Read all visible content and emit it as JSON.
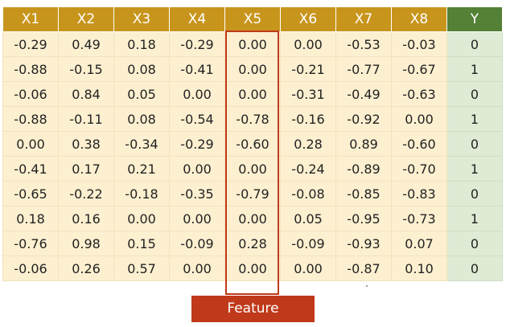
{
  "table": {
    "headers": [
      "X1",
      "X2",
      "X3",
      "X4",
      "X5",
      "X6",
      "X7",
      "X8",
      "Y"
    ],
    "rows": [
      [
        "-0.29",
        "0.49",
        "0.18",
        "-0.29",
        "0.00",
        "0.00",
        "-0.53",
        "-0.03",
        "0"
      ],
      [
        "-0.88",
        "-0.15",
        "0.08",
        "-0.41",
        "0.00",
        "-0.21",
        "-0.77",
        "-0.67",
        "1"
      ],
      [
        "-0.06",
        "0.84",
        "0.05",
        "0.00",
        "0.00",
        "-0.31",
        "-0.49",
        "-0.63",
        "0"
      ],
      [
        "-0.88",
        "-0.11",
        "0.08",
        "-0.54",
        "-0.78",
        "-0.16",
        "-0.92",
        "0.00",
        "1"
      ],
      [
        "0.00",
        "0.38",
        "-0.34",
        "-0.29",
        "-0.60",
        "0.28",
        "0.89",
        "-0.60",
        "0"
      ],
      [
        "-0.41",
        "0.17",
        "0.21",
        "0.00",
        "0.00",
        "-0.24",
        "-0.89",
        "-0.70",
        "1"
      ],
      [
        "-0.65",
        "-0.22",
        "-0.18",
        "-0.35",
        "-0.79",
        "-0.08",
        "-0.85",
        "-0.83",
        "0"
      ],
      [
        "0.18",
        "0.16",
        "0.00",
        "0.00",
        "0.00",
        "0.05",
        "-0.95",
        "-0.73",
        "1"
      ],
      [
        "-0.76",
        "0.98",
        "0.15",
        "-0.09",
        "0.28",
        "-0.09",
        "-0.93",
        "0.07",
        "0"
      ],
      [
        "-0.06",
        "0.26",
        "0.57",
        "0.00",
        "0.00",
        "0.00",
        "-0.87",
        "0.10",
        "0"
      ]
    ],
    "highlighted_column": "X5"
  },
  "feature_label": "Feature",
  "colors": {
    "feature_header": "#c8951c",
    "target_header": "#538135",
    "feature_cell": "#fdf0d0",
    "target_cell": "#dfebd5",
    "highlight": "#c0391b"
  }
}
